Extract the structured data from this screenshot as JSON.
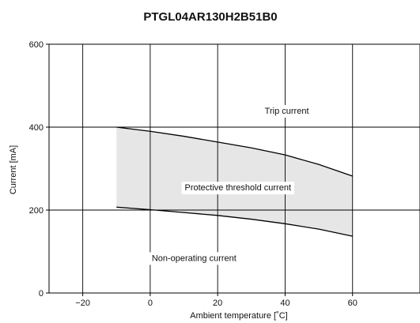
{
  "chart_data": {
    "type": "area",
    "title": "PTGL04AR130H2B51B0",
    "xlabel": "Ambient temperature [˚C]",
    "ylabel": "Current [mA]",
    "xlim": [
      -30,
      80
    ],
    "ylim": [
      0,
      600
    ],
    "x_ticks": [
      -20,
      0,
      20,
      40,
      60
    ],
    "y_ticks": [
      0,
      200,
      400,
      600
    ],
    "grid": true,
    "series": [
      {
        "name": "Trip current",
        "x": [
          -10,
          0,
          10,
          20,
          30,
          40,
          50,
          60
        ],
        "y": [
          400,
          390,
          378,
          364,
          350,
          333,
          310,
          282
        ]
      },
      {
        "name": "Non-operating current",
        "x": [
          -10,
          0,
          10,
          20,
          30,
          40,
          50,
          60
        ],
        "y": [
          207,
          201,
          194,
          187,
          178,
          167,
          154,
          137
        ]
      }
    ],
    "fill_between": {
      "color": "#e6e6e6"
    },
    "annotations": [
      {
        "text": "Trip current",
        "x": 40.5,
        "y": 440
      },
      {
        "text": "Protective threshold current",
        "x": 26,
        "y": 255
      },
      {
        "text": "Non-operating current",
        "x": 13,
        "y": 85
      }
    ],
    "colors": {
      "line": "#000000",
      "grid": "#000000",
      "band": "#e6e6e6",
      "label_bg": "#ffffff"
    }
  }
}
